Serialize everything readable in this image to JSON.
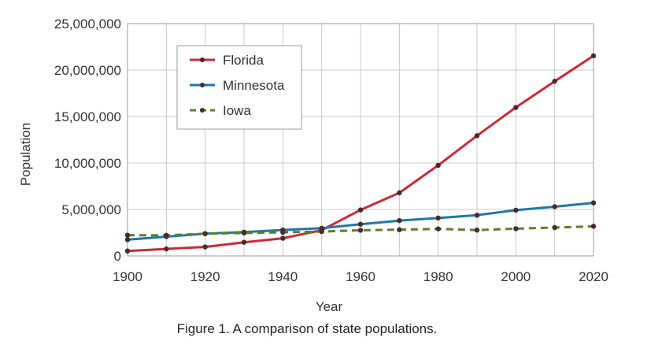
{
  "caption": "Figure 1. A comparison of state populations.",
  "chart_data": {
    "type": "line",
    "title": "",
    "xlabel": "Year",
    "ylabel": "Population",
    "xlim": [
      1900,
      2020
    ],
    "ylim": [
      0,
      25000000
    ],
    "x_ticks": [
      1900,
      1920,
      1940,
      1960,
      1980,
      2000,
      2020
    ],
    "y_ticks": [
      0,
      5000000,
      10000000,
      15000000,
      20000000,
      25000000
    ],
    "y_tick_labels": [
      "0",
      "5,000,000",
      "10,000,000",
      "15,000,000",
      "20,000,000",
      "25,000,000"
    ],
    "grid": true,
    "legend_position": "top-left",
    "x": [
      1900,
      1910,
      1920,
      1930,
      1940,
      1950,
      1960,
      1970,
      1980,
      1990,
      2000,
      2010,
      2020
    ],
    "series": [
      {
        "name": "Florida",
        "color": "#cc2a36",
        "dash": false,
        "values": [
          530000,
          750000,
          970000,
          1470000,
          1900000,
          2770000,
          4950000,
          6790000,
          9750000,
          12940000,
          15980000,
          18800000,
          21540000
        ]
      },
      {
        "name": "Minnesota",
        "color": "#1f77a8",
        "dash": false,
        "values": [
          1750000,
          2080000,
          2390000,
          2560000,
          2790000,
          2980000,
          3410000,
          3800000,
          4080000,
          4380000,
          4920000,
          5300000,
          5710000
        ]
      },
      {
        "name": "Iowa",
        "color": "#5b7f2e",
        "dash": true,
        "values": [
          2230000,
          2220000,
          2400000,
          2470000,
          2540000,
          2620000,
          2760000,
          2820000,
          2910000,
          2780000,
          2930000,
          3050000,
          3190000
        ]
      }
    ]
  }
}
